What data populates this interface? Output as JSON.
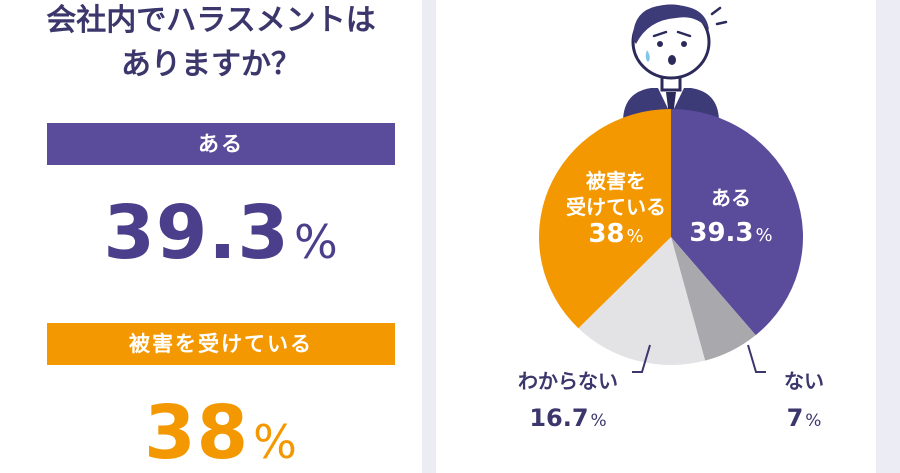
{
  "title": {
    "line1": "会社内でハラスメントは",
    "line2": "ありますか？"
  },
  "summary": [
    {
      "label": "ある",
      "value": "39.3",
      "unit": "%"
    },
    {
      "label": "被害を受けている",
      "value": "38",
      "unit": "%"
    }
  ],
  "colors": {
    "purple": "#5a4b9b",
    "orange": "#f39800",
    "light_gray": "#e3e3e6",
    "dark_gray": "#a9a9ad",
    "navy_text": "#3b366b"
  },
  "icon": "worried-businessman-icon",
  "chart_data": {
    "type": "pie",
    "slices": [
      {
        "label": "ある",
        "value": 39.3,
        "color": "#5a4b9b",
        "display": [
          "ある"
        ],
        "value_text": "39.3",
        "unit": "%"
      },
      {
        "label": "ない",
        "value": 7,
        "color": "#a9a9ad",
        "display": [
          "ない"
        ],
        "value_text": "7",
        "unit": "%"
      },
      {
        "label": "わからない",
        "value": 16.7,
        "color": "#e3e3e6",
        "display": [
          "わからない"
        ],
        "value_text": "16.7",
        "unit": "%"
      },
      {
        "label": "被害を受けている",
        "value": 38,
        "color": "#f39800",
        "display": [
          "被害を",
          "受けている"
        ],
        "value_text": "38",
        "unit": "%"
      }
    ],
    "start_angle_deg": 0,
    "direction": "clockwise"
  }
}
